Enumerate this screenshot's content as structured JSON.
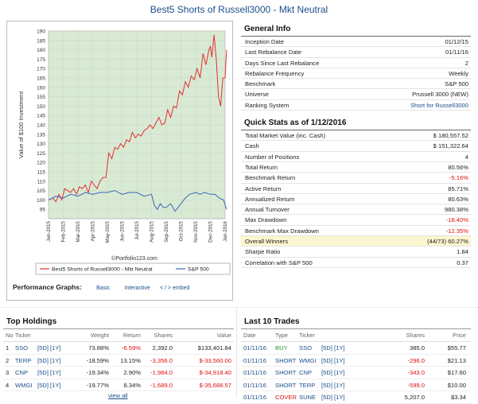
{
  "title": "Best5 Shorts of Russell3000 - Mkt Neutral",
  "general_info": {
    "heading": "General Info",
    "rows": [
      {
        "label": "Inception Date",
        "value": "01/12/15"
      },
      {
        "label": "Last Rebalance Date",
        "value": "01/11/16"
      },
      {
        "label": "Days Since Last Rebalance",
        "value": "2"
      },
      {
        "label": "Rebalance Frequency",
        "value": "Weekly"
      },
      {
        "label": "Benchmark",
        "value": "S&P 500"
      },
      {
        "label": "Universe",
        "value": "Prussell 3000 (NEW)"
      },
      {
        "label": "Ranking System",
        "value": "Short for Russell3000",
        "link": true
      }
    ]
  },
  "quick_stats": {
    "heading": "Quick Stats as of 1/12/2016",
    "rows": [
      {
        "label": "Total Market Value (inc. Cash)",
        "value": "$ 180,557.52"
      },
      {
        "label": "Cash",
        "value": "$ 151,322.64"
      },
      {
        "label": "Number of Positions",
        "value": "4"
      },
      {
        "label": "Total Return",
        "value": "80.56%"
      },
      {
        "label": "Benchmark Return",
        "value": "-5.16%",
        "neg": true
      },
      {
        "label": "Active Return",
        "value": "85.71%"
      },
      {
        "label": "Annualized Return",
        "value": "80.63%"
      },
      {
        "label": "Annual Turnover",
        "value": "980.38%"
      },
      {
        "label": "Max Drawdown",
        "value": "-18.40%",
        "neg": true
      },
      {
        "label": "Benchmark Max Drawdown",
        "value": "-12.35%",
        "neg": true
      },
      {
        "label": "Overall Winners",
        "value": "(44/73) 60.27%",
        "hl": true
      },
      {
        "label": "Sharpe Ratio",
        "value": "1.84"
      },
      {
        "label": "Correlation with S&P 500",
        "value": "0.37"
      }
    ]
  },
  "performance_graphs": {
    "label": "Performance Graphs:",
    "links": [
      "Basic",
      "Interactive",
      "< / > embed"
    ]
  },
  "top_holdings": {
    "heading": "Top Holdings",
    "columns": [
      "No",
      "Ticker",
      "",
      "Weight",
      "Return",
      "Shares",
      "Value"
    ],
    "rows": [
      {
        "no": "1",
        "ticker": "SSO",
        "links": "[5D] [1Y]",
        "weight": "73.88%",
        "ret": "-6.59%",
        "shares": "2,392.0",
        "value": "$133,401.84",
        "ret_neg": true,
        "sh_neg": false,
        "val_neg": false
      },
      {
        "no": "2",
        "ticker": "TERP",
        "links": "[5D] [1Y]",
        "weight": "-18.59%",
        "ret": "13.15%",
        "shares": "-3,356.0",
        "value": "$-33,560.00",
        "ret_neg": false,
        "sh_neg": true,
        "val_neg": true
      },
      {
        "no": "3",
        "ticker": "CNP",
        "links": "[5D] [1Y]",
        "weight": "-19.34%",
        "ret": "2.90%",
        "shares": "-1,984.0",
        "value": "$-34,918.40",
        "ret_neg": false,
        "sh_neg": true,
        "val_neg": true
      },
      {
        "no": "4",
        "ticker": "WMGI",
        "links": "[5D] [1Y]",
        "weight": "-19.77%",
        "ret": "8.34%",
        "shares": "-1,689.0",
        "value": "$-35,688.57",
        "ret_neg": false,
        "sh_neg": true,
        "val_neg": true
      }
    ],
    "view_all": "view all"
  },
  "last_trades": {
    "heading": "Last 10 Trades",
    "columns": [
      "Date",
      "Type",
      "Ticker",
      "",
      "Shares",
      "Price"
    ],
    "rows": [
      {
        "date": "01/11/16",
        "type": "BUY",
        "ticker": "SSO",
        "links": "[5D] [1Y]",
        "shares": "385.0",
        "price": "$55.77",
        "type_color": "#2a9a2a",
        "sh_neg": false
      },
      {
        "date": "01/11/16",
        "type": "SHORT",
        "ticker": "WMGI",
        "links": "[5D] [1Y]",
        "shares": "-296.0",
        "price": "$21.13",
        "type_color": "#1a4f8a",
        "sh_neg": true
      },
      {
        "date": "01/11/16",
        "type": "SHORT",
        "ticker": "CNP",
        "links": "[5D] [1Y]",
        "shares": "-343.0",
        "price": "$17.60",
        "type_color": "#1a4f8a",
        "sh_neg": true
      },
      {
        "date": "01/11/16",
        "type": "SHORT",
        "ticker": "TERP",
        "links": "[5D] [1Y]",
        "shares": "-599.0",
        "price": "$10.00",
        "type_color": "#1a4f8a",
        "sh_neg": true
      },
      {
        "date": "01/11/16",
        "type": "COVER",
        "ticker": "SUNE",
        "links": "[5D] [1Y]",
        "shares": "5,207.0",
        "price": "$3.34",
        "type_color": "#d11",
        "sh_neg": false
      }
    ]
  },
  "chart_data": {
    "type": "line",
    "ylabel": "Value of $100 Investment",
    "ylim": [
      90,
      190
    ],
    "yticks": [
      95,
      100,
      105,
      110,
      115,
      120,
      125,
      130,
      135,
      140,
      145,
      150,
      155,
      160,
      165,
      170,
      175,
      180,
      185,
      190
    ],
    "xticks": [
      "Jan-2015",
      "Feb-2015",
      "Mar-2015",
      "Apr-2015",
      "May-2015",
      "Jun-2015",
      "Jul-2015",
      "Aug-2015",
      "Sep-2015",
      "Oct-2015",
      "Nov-2015",
      "Dec-2015",
      "Jan-2016"
    ],
    "watermark": "©Portfolio123.com",
    "shaded_region": true,
    "colors": {
      "portfolio": "#e03030",
      "benchmark": "#3a67b8",
      "shade": "#d9ead4"
    },
    "series": [
      {
        "name": "Best5 Shorts of Russell3000 - Mkt Neutral",
        "x": [
          0,
          0.3,
          0.5,
          0.7,
          0.9,
          1.1,
          1.3,
          1.5,
          1.7,
          1.9,
          2.1,
          2.3,
          2.5,
          2.7,
          2.9,
          3.1,
          3.3,
          3.5,
          3.7,
          3.9,
          4.1,
          4.3,
          4.5,
          4.7,
          4.9,
          5.1,
          5.3,
          5.5,
          5.7,
          5.9,
          6.1,
          6.3,
          6.5,
          6.7,
          6.9,
          7.1,
          7.3,
          7.5,
          7.7,
          7.9,
          8.1,
          8.3,
          8.5,
          8.7,
          8.9,
          9.1,
          9.3,
          9.5,
          9.7,
          9.9,
          10.1,
          10.3,
          10.5,
          10.7,
          10.9,
          11.0,
          11.1,
          11.25,
          11.4,
          11.55,
          11.7,
          11.85,
          12.0,
          12.1
        ],
        "y": [
          100,
          101,
          99,
          103,
          100,
          106,
          105,
          104,
          106,
          103,
          107,
          106,
          108,
          104,
          110,
          108,
          106,
          110,
          112,
          112,
          125,
          122,
          128,
          127,
          130,
          128,
          132,
          131,
          136,
          133,
          135,
          134,
          137,
          138,
          140,
          138,
          141,
          144,
          140,
          141,
          148,
          144,
          150,
          149,
          158,
          156,
          163,
          160,
          166,
          164,
          170,
          165,
          178,
          172,
          180,
          182,
          176,
          188,
          175,
          155,
          150,
          165,
          165,
          180
        ]
      },
      {
        "name": "S&P 500",
        "x": [
          0,
          0.5,
          1.0,
          1.5,
          2.0,
          2.5,
          3.0,
          3.5,
          4.0,
          4.5,
          5.0,
          5.5,
          6.0,
          6.5,
          7.0,
          7.2,
          7.4,
          7.6,
          7.8,
          8.0,
          8.3,
          8.6,
          9.0,
          9.3,
          9.6,
          10.0,
          10.3,
          10.6,
          11.0,
          11.3,
          11.6,
          11.9,
          12.1
        ],
        "y": [
          100,
          102,
          101,
          103,
          102,
          104,
          103,
          104,
          104,
          105,
          103,
          104,
          104,
          102,
          103,
          97,
          95,
          98,
          96,
          96,
          98,
          94,
          98,
          101,
          103,
          104,
          103,
          104,
          103,
          103,
          101,
          100,
          95
        ]
      }
    ]
  }
}
